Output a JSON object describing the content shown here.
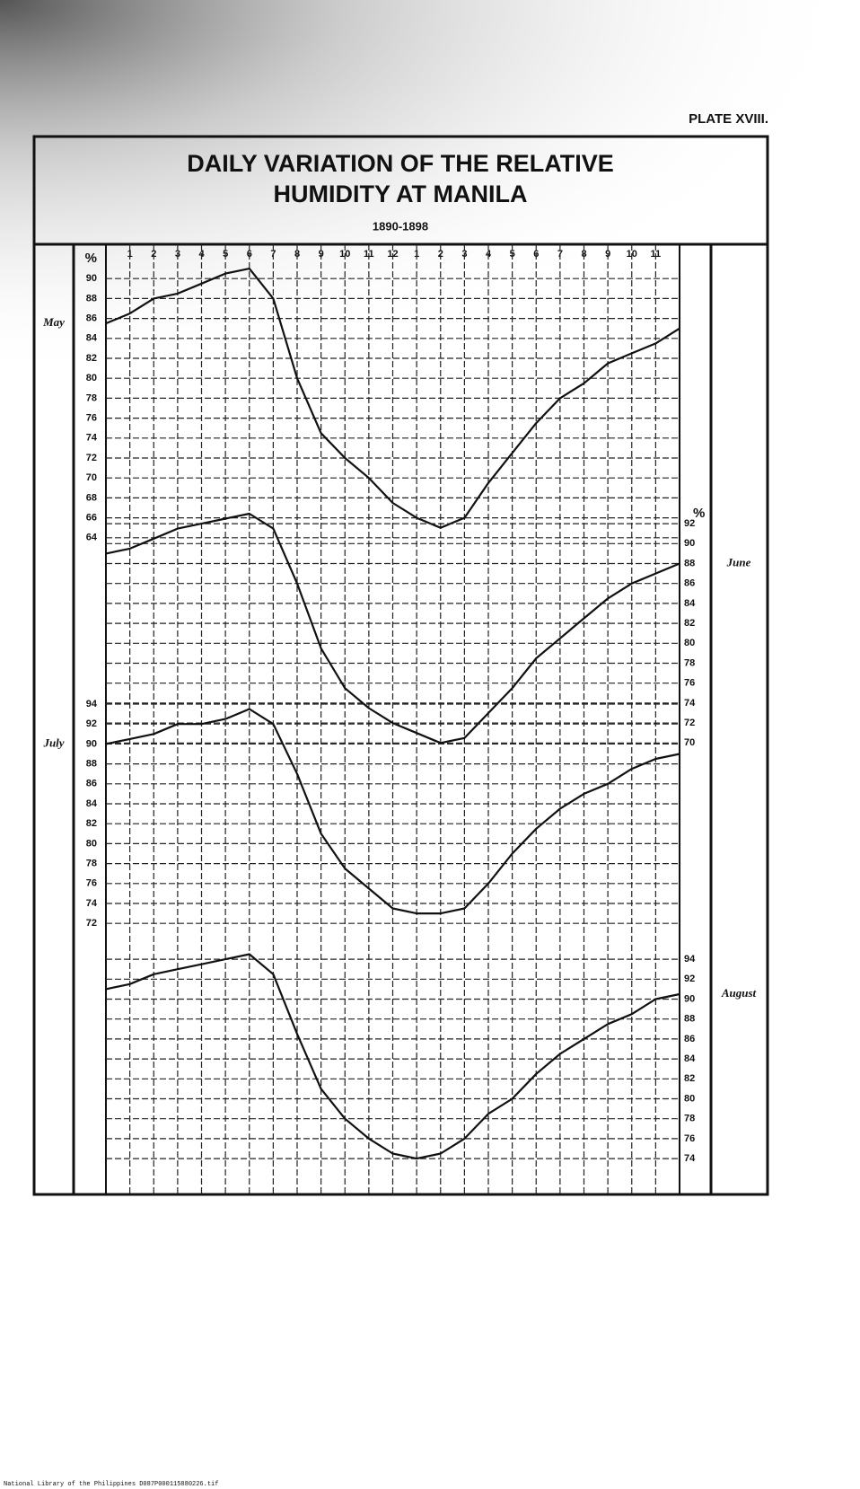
{
  "header": {
    "plate": "PLATE XVIII.",
    "title": [
      "DAILY VARIATION OF THE RELATIVE",
      "HUMIDITY AT MANILA"
    ],
    "subtitle": "1890-1898"
  },
  "chart_data": [
    {
      "type": "line",
      "name": "May",
      "axis_side": "left",
      "y_label": "%",
      "color": "#111111",
      "x": [
        0,
        1,
        2,
        3,
        4,
        5,
        6,
        7,
        8,
        9,
        10,
        11,
        12,
        13,
        14,
        15,
        16,
        17,
        18,
        19,
        20,
        21,
        22,
        23,
        24
      ],
      "values": [
        85.5,
        86.5,
        88,
        88.5,
        89.5,
        90.5,
        91,
        88,
        80,
        74.5,
        72,
        70,
        67.5,
        66,
        65,
        66,
        69.5,
        72.5,
        75.5,
        78,
        79.5,
        81.5,
        82.5,
        83.5,
        85
      ],
      "xlim": [
        0,
        24
      ],
      "xticks": [
        1,
        2,
        3,
        4,
        5,
        6,
        7,
        8,
        9,
        10,
        11,
        12,
        {
          "value": 13,
          "label": "1"
        },
        {
          "value": 14,
          "label": "2"
        },
        {
          "value": 15,
          "label": "3"
        },
        {
          "value": 16,
          "label": "4"
        },
        {
          "value": 17,
          "label": "5"
        },
        {
          "value": 18,
          "label": "6"
        },
        {
          "value": 19,
          "label": "7"
        },
        {
          "value": 20,
          "label": "8"
        },
        {
          "value": 21,
          "label": "9"
        },
        {
          "value": 22,
          "label": "10"
        },
        {
          "value": 23,
          "label": "11"
        }
      ],
      "ylim": [
        64,
        92
      ],
      "yticks": [
        64,
        66,
        68,
        70,
        72,
        74,
        76,
        78,
        80,
        82,
        84,
        86,
        88,
        90
      ],
      "grid": true
    },
    {
      "type": "line",
      "name": "June",
      "axis_side": "right",
      "y_label": "%",
      "color": "#111111",
      "x": [
        0,
        1,
        2,
        3,
        4,
        5,
        6,
        7,
        8,
        9,
        10,
        11,
        12,
        13,
        14,
        15,
        16,
        17,
        18,
        19,
        20,
        21,
        22,
        23,
        24
      ],
      "values": [
        89,
        89.5,
        90.5,
        91.5,
        92,
        92.5,
        93,
        91.5,
        86,
        79.5,
        75.5,
        73.5,
        72,
        71,
        70,
        70.5,
        73,
        75.5,
        78.5,
        80.5,
        82.5,
        84.5,
        86,
        87,
        88
      ],
      "ylim": [
        70,
        93
      ],
      "yticks": [
        70,
        72,
        74,
        76,
        78,
        80,
        82,
        84,
        86,
        88,
        90,
        92
      ],
      "grid": true
    },
    {
      "type": "line",
      "name": "July",
      "axis_side": "left",
      "color": "#111111",
      "x": [
        0,
        1,
        2,
        3,
        4,
        5,
        6,
        7,
        8,
        9,
        10,
        11,
        12,
        13,
        14,
        15,
        16,
        17,
        18,
        19,
        20,
        21,
        22,
        23,
        24
      ],
      "values": [
        90,
        90.5,
        91,
        92,
        92,
        92.5,
        93.5,
        92,
        87,
        81,
        77.5,
        75.5,
        73.5,
        73,
        73,
        73.5,
        76,
        79,
        81.5,
        83.5,
        85,
        86,
        87.5,
        88.5,
        89
      ],
      "ylim": [
        72,
        94
      ],
      "yticks": [
        72,
        74,
        76,
        78,
        80,
        82,
        84,
        86,
        88,
        90,
        92,
        94
      ],
      "grid": true
    },
    {
      "type": "line",
      "name": "August",
      "axis_side": "right",
      "color": "#111111",
      "x": [
        0,
        1,
        2,
        3,
        4,
        5,
        6,
        7,
        8,
        9,
        10,
        11,
        12,
        13,
        14,
        15,
        16,
        17,
        18,
        19,
        20,
        21,
        22,
        23,
        24
      ],
      "values": [
        91,
        91.5,
        92.5,
        93,
        93.5,
        94,
        94.5,
        92.5,
        86.5,
        81,
        78,
        76,
        74.5,
        74,
        74.5,
        76,
        78.5,
        80,
        82.5,
        84.5,
        86,
        87.5,
        88.5,
        90,
        90.5
      ],
      "ylim": [
        74,
        95
      ],
      "yticks": [
        74,
        76,
        78,
        80,
        82,
        84,
        86,
        88,
        90,
        92,
        94
      ],
      "grid": true
    }
  ],
  "footer": "National Library of the Philippines   D087P000115880226.tif"
}
